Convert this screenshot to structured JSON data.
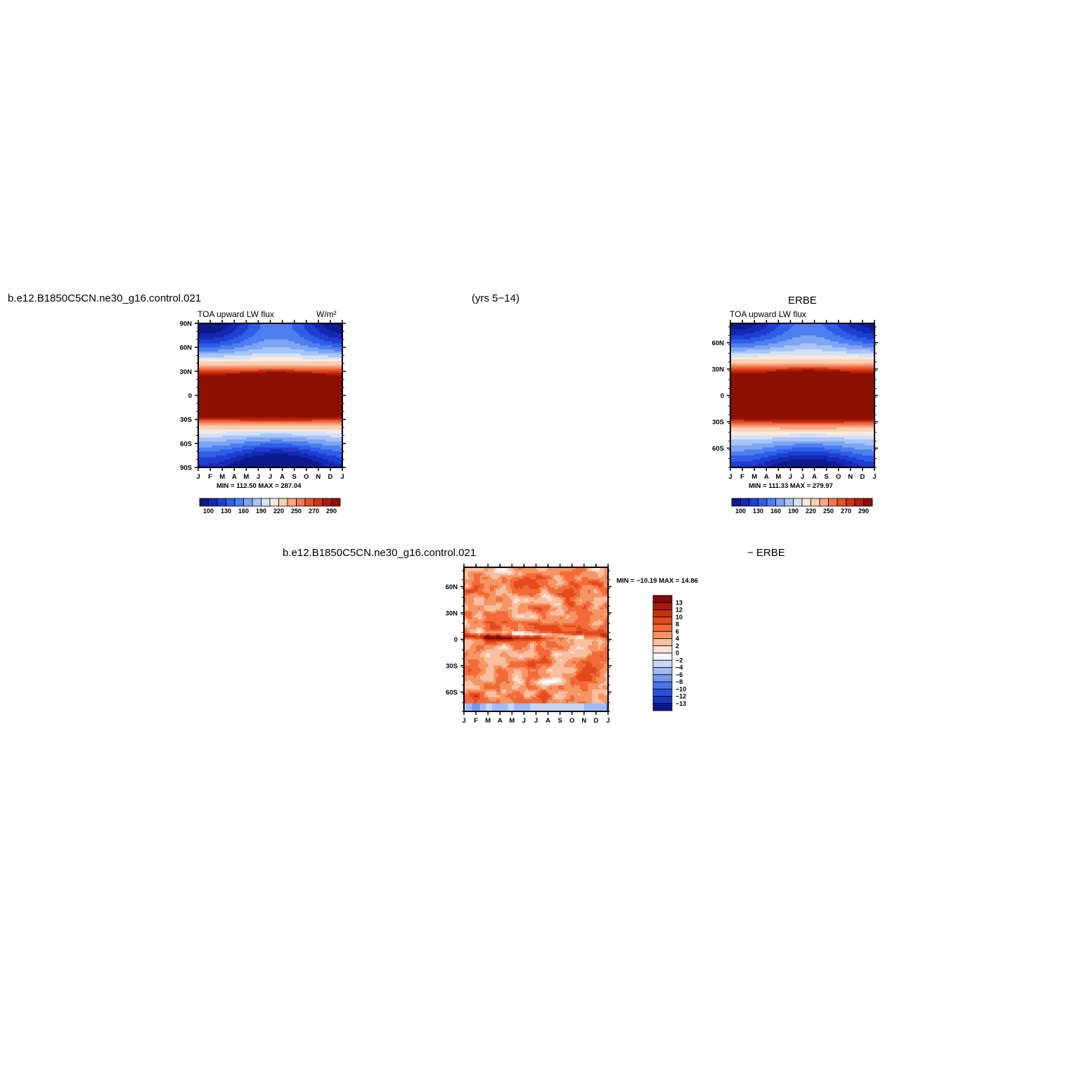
{
  "header": {
    "case_name": "b.e12.B1850C5CN.ne30_g16.control.021",
    "years": "(yrs 5−14)",
    "obs_name": "ERBE"
  },
  "diff_title": {
    "case_name": "b.e12.B1850C5CN.ne30_g16.control.021",
    "suffix": "− ERBE"
  },
  "chart_data": [
    {
      "type": "heatmap",
      "title": "b.e12.B1850C5CN.ne30_g16.control.021",
      "subtitle": "TOA upward LW flux",
      "units": "W/m²",
      "x_tick_labels": [
        "J",
        "F",
        "M",
        "A",
        "M",
        "J",
        "J",
        "A",
        "S",
        "O",
        "N",
        "D",
        "J"
      ],
      "y_tick_labels": [
        "90N",
        "60N",
        "30N",
        "0",
        "30S",
        "60S",
        "90S"
      ],
      "ylim": [
        -90,
        90
      ],
      "min_max": "MIN = 112.50 MAX = 287.04",
      "colorbar_labels": [
        "100",
        "130",
        "160",
        "190",
        "220",
        "250",
        "270",
        "290"
      ]
    },
    {
      "type": "heatmap",
      "title": "ERBE",
      "subtitle": "TOA upward LW flux",
      "x_tick_labels": [
        "J",
        "F",
        "M",
        "A",
        "M",
        "J",
        "J",
        "A",
        "S",
        "O",
        "N",
        "D",
        "J"
      ],
      "y_tick_labels": [
        "60N",
        "30N",
        "0",
        "30S",
        "60S"
      ],
      "ylim": [
        -80,
        80
      ],
      "min_max": "MIN = 111.33 MAX = 279.97",
      "colorbar_labels": [
        "100",
        "130",
        "160",
        "190",
        "220",
        "250",
        "270",
        "290"
      ]
    },
    {
      "type": "heatmap",
      "title": "b.e12.B1850C5CN.ne30_g16.control.021 − ERBE",
      "x_tick_labels": [
        "J",
        "F",
        "M",
        "A",
        "M",
        "J",
        "J",
        "A",
        "S",
        "O",
        "N",
        "D",
        "J"
      ],
      "y_tick_labels": [
        "60N",
        "30N",
        "0",
        "30S",
        "60S"
      ],
      "ylim": [
        -80,
        80
      ],
      "min_max": "MIN = −10.19 MAX = 14.86",
      "colorbar_labels": [
        "13",
        "12",
        "10",
        "8",
        "6",
        "4",
        "2",
        "0",
        "−2",
        "−4",
        "−6",
        "−8",
        "−10",
        "−12",
        "−13"
      ]
    }
  ],
  "colors": {
    "abs_scale": [
      "#0c1a8a",
      "#1428b4",
      "#1e3fd0",
      "#2f5ee8",
      "#4d7ff0",
      "#7ea4f4",
      "#a9c4f8",
      "#d2e2fb",
      "#fbe9dc",
      "#fbcfb4",
      "#f6a681",
      "#f27a52",
      "#e4542b",
      "#cf3412",
      "#b01d08",
      "#8e1003"
    ],
    "diff_scale": [
      "#7f0a06",
      "#a41d0c",
      "#c9300f",
      "#e34b1c",
      "#f26a38",
      "#f69564",
      "#f9bfa0",
      "#fde2d3",
      "#f4f7ff",
      "#c6d6f8",
      "#9fbaf5",
      "#7597f0",
      "#4c74ea",
      "#2a50dc",
      "#1634bd",
      "#0a1a8c"
    ]
  }
}
